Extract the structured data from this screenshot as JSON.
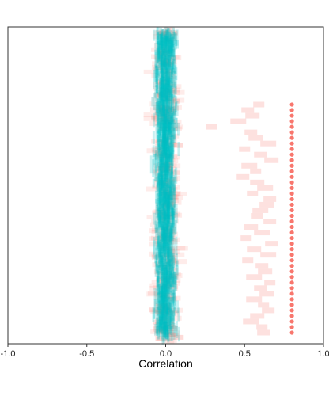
{
  "chart_data": {
    "type": "scatter",
    "title": "",
    "xlabel": "Correlation",
    "ylabel": "",
    "xlim": [
      -1.0,
      1.0
    ],
    "x_ticks": [
      -1.0,
      -0.5,
      0.0,
      0.5,
      1.0
    ],
    "x_tick_labels": [
      "-1.0",
      "-0.5",
      "0.0",
      "0.5",
      "1.0"
    ],
    "grid": false,
    "legend": "none",
    "colors": {
      "null_band": "#00bfc4",
      "sample_rect": "#f8766d",
      "observed_point": "#f8766d",
      "frame": "#333333"
    },
    "series": [
      {
        "kind": "null-distribution-band",
        "center": 0.0,
        "core_x_range": [
          -0.1,
          0.1
        ],
        "extent_x_range": [
          -0.2,
          0.2
        ],
        "rows": 58
      },
      {
        "kind": "observed-correlation-points",
        "x": [
          0.8,
          0.8,
          0.8,
          0.8,
          0.8,
          0.8,
          0.8,
          0.8,
          0.8,
          0.8,
          0.8,
          0.8,
          0.8,
          0.8,
          0.8,
          0.8,
          0.8,
          0.8,
          0.8,
          0.8,
          0.8,
          0.8,
          0.8,
          0.8,
          0.8,
          0.8,
          0.8,
          0.8,
          0.8,
          0.8,
          0.8,
          0.8,
          0.8,
          0.8,
          0.8,
          0.8,
          0.8,
          0.8,
          0.8,
          0.8,
          0.8,
          0.8
        ]
      },
      {
        "kind": "bootstrap-correlation-rects",
        "x": [
          0.59,
          0.52,
          0.55,
          0.46,
          0.29,
          0.54,
          0.57,
          0.65,
          0.5,
          0.6,
          0.67,
          0.53,
          0.57,
          0.49,
          0.58,
          0.63,
          0.55,
          0.66,
          0.64,
          0.6,
          0.58,
          0.66,
          0.54,
          0.61,
          0.51,
          0.67,
          0.56,
          0.65,
          0.52,
          0.61,
          0.63,
          0.56,
          0.66,
          0.6,
          0.64,
          0.56,
          0.62,
          0.65,
          0.58,
          0.54,
          0.61,
          0.62
        ]
      }
    ]
  }
}
